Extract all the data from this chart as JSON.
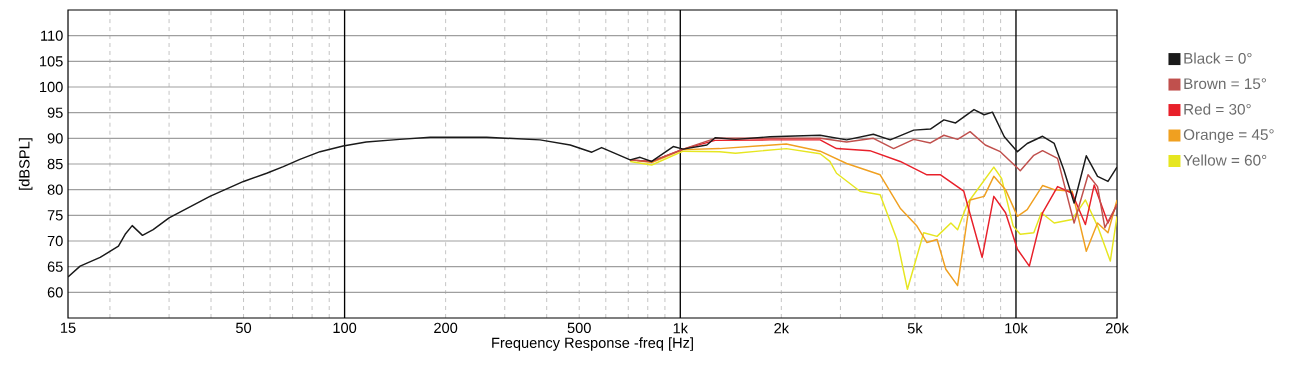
{
  "chart_data": {
    "type": "line",
    "xlabel": "Frequency Response -freq [Hz]",
    "ylabel": "[dBSPL]",
    "xlim": [
      15,
      20000
    ],
    "ylim": [
      55,
      115
    ],
    "xticks": [
      15,
      50,
      100,
      200,
      500,
      {
        "value": 1000,
        "label": "1k"
      },
      {
        "value": 2000,
        "label": "2k"
      },
      {
        "value": 5000,
        "label": "5k"
      },
      {
        "value": 10000,
        "label": "10k"
      },
      {
        "value": 20000,
        "label": "20k"
      }
    ],
    "yticks": [
      60,
      65,
      70,
      75,
      80,
      85,
      90,
      95,
      100,
      105,
      110
    ],
    "log": "x",
    "grid": true,
    "legend": "right",
    "series": [
      {
        "name": "Yellow = 60°",
        "color": "#e6e620",
        "x": [
          709,
          822,
          1020,
          1310,
          1460,
          2070,
          2610,
          2790,
          2920,
          3430,
          3940,
          4420,
          4750,
          5310,
          5820,
          6400,
          6700,
          7180,
          8590,
          9060,
          9810,
          10300,
          11300,
          11900,
          13000,
          14700,
          16100,
          17500,
          19100,
          20000
        ],
        "values": [
          85.5,
          84.8,
          87.5,
          87.4,
          87.1,
          88.0,
          87.0,
          85.5,
          83.2,
          79.7,
          79.0,
          70.3,
          60.6,
          71.6,
          70.9,
          73.5,
          72.2,
          77.4,
          84.4,
          82.2,
          72.9,
          71.3,
          71.6,
          75.5,
          73.5,
          74.2,
          78.0,
          72.9,
          66.1,
          74.8
        ]
      },
      {
        "name": "Orange = 45°",
        "color": "#f0a020",
        "x": [
          709,
          822,
          1020,
          1310,
          2070,
          2610,
          3130,
          3940,
          4520,
          5070,
          5430,
          5820,
          6180,
          6700,
          7300,
          8040,
          8590,
          9310,
          10100,
          10800,
          12000,
          13000,
          14700,
          16200,
          17500,
          18800,
          20000
        ],
        "values": [
          85.8,
          85.3,
          87.8,
          88.0,
          88.9,
          87.5,
          85.1,
          82.9,
          76.4,
          72.9,
          69.7,
          70.3,
          64.5,
          61.3,
          78.0,
          78.7,
          82.6,
          80.0,
          74.8,
          76.1,
          80.8,
          80.0,
          79.7,
          68.0,
          73.5,
          71.6,
          78.0
        ]
      },
      {
        "name": "Red = 30°",
        "color": "#e8202a",
        "x": [
          709,
          822,
          1020,
          1270,
          1850,
          2610,
          2920,
          3670,
          4520,
          5430,
          5960,
          6990,
          7930,
          8590,
          9310,
          10100,
          10960,
          12000,
          13300,
          14700,
          16100,
          17100,
          18800,
          20000
        ],
        "values": [
          85.8,
          85.5,
          87.9,
          89.6,
          89.7,
          89.7,
          88.0,
          87.6,
          85.5,
          82.9,
          82.9,
          79.7,
          66.8,
          78.7,
          75.5,
          68.4,
          65.1,
          75.5,
          80.6,
          79.3,
          73.2,
          80.9,
          73.5,
          77.1
        ]
      },
      {
        "name": "Brown = 15°",
        "color": "#c0504d",
        "x": [
          709,
          822,
          1020,
          1270,
          1850,
          2610,
          3130,
          3760,
          4320,
          4960,
          5560,
          6100,
          6700,
          7300,
          8100,
          8980,
          10300,
          11300,
          12000,
          13300,
          14900,
          16400,
          17500,
          18400,
          20000
        ],
        "values": [
          85.8,
          85.5,
          87.9,
          90.0,
          90.0,
          90.0,
          89.3,
          90.0,
          88.0,
          89.8,
          89.1,
          90.6,
          89.8,
          91.3,
          88.7,
          87.4,
          83.7,
          86.7,
          87.6,
          86.1,
          73.5,
          82.9,
          80.6,
          72.6,
          77.1
        ]
      },
      {
        "name": "Black = 0°",
        "color": "#1a1a1a",
        "x": [
          15,
          16.3,
          18.7,
          21.2,
          22.2,
          23.3,
          25.0,
          26.9,
          30,
          39.7,
          50,
          58.6,
          65.7,
          73.6,
          84.5,
          99,
          116,
          146,
          180,
          265,
          382,
          470,
          545,
          583,
          709,
          759,
          822,
          953,
          1020,
          1200,
          1270,
          1460,
          1850,
          2610,
          3130,
          3760,
          4220,
          4960,
          5560,
          6100,
          6610,
          7500,
          8040,
          8510,
          9230,
          10100,
          10800,
          12000,
          13000,
          13900,
          14900,
          16200,
          17500,
          18800,
          20000
        ],
        "values": [
          63.0,
          65.1,
          66.8,
          69.0,
          71.3,
          73.0,
          71.1,
          72.2,
          74.5,
          78.7,
          81.6,
          83.2,
          84.5,
          85.9,
          87.4,
          88.5,
          89.3,
          89.8,
          90.2,
          90.2,
          89.7,
          88.7,
          87.3,
          88.2,
          85.8,
          86.3,
          85.5,
          88.4,
          87.9,
          88.7,
          90.1,
          89.8,
          90.3,
          90.6,
          89.7,
          90.8,
          89.7,
          91.6,
          91.8,
          93.6,
          93.0,
          95.6,
          94.6,
          95.1,
          90.3,
          87.4,
          89.0,
          90.4,
          89.0,
          83.8,
          77.4,
          86.6,
          82.6,
          81.6,
          84.4
        ]
      }
    ]
  }
}
